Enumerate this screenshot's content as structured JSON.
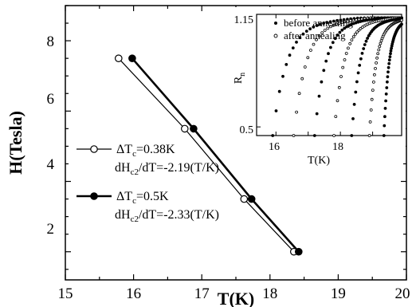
{
  "chart_data": [
    {
      "type": "line",
      "xlabel": "T(K)",
      "ylabel": "H(Tesla)",
      "xlim": [
        15,
        20
      ],
      "ylim": [
        1.2,
        9.0
      ],
      "xticks": [
        "15",
        "16",
        "17",
        "18",
        "19",
        "20"
      ],
      "yticks": [
        "2",
        "4",
        "6",
        "8"
      ],
      "series": [
        {
          "marker": "open-circle",
          "line_weight": "thin",
          "legend": {
            "line1": {
              "a": "ΔT",
              "sub": "c",
              "b": "=0.38K"
            },
            "line2": {
              "a": "dH",
              "sub": "c2",
              "b": "/dT=-2.19(T/K)"
            }
          },
          "x": [
            15.78,
            16.75,
            17.62,
            18.35
          ],
          "y": [
            7.5,
            5.5,
            3.5,
            2.0
          ]
        },
        {
          "marker": "filled-circle",
          "line_weight": "thick",
          "legend": {
            "line1": {
              "a": "ΔT",
              "sub": "c",
              "b": "=0.5K"
            },
            "line2": {
              "a": "dH",
              "sub": "c2",
              "b": "/dT=-2.33(T/K)"
            }
          },
          "x": [
            15.98,
            16.88,
            17.73,
            18.42
          ],
          "y": [
            7.5,
            5.5,
            3.5,
            2.0
          ]
        }
      ]
    },
    {
      "type": "scatter",
      "xlabel": "T(K)",
      "ylabel": {
        "a": "R",
        "sub": "n"
      },
      "xlim": [
        15.4,
        19.9
      ],
      "ylim": [
        0.45,
        1.15
      ],
      "xticks": [
        "16",
        "18"
      ],
      "yticks": [
        "0.5",
        "1.15"
      ],
      "legend": [
        {
          "marker": "filled-dot",
          "label": "before annealing"
        },
        {
          "marker": "open-dot",
          "label": "after annealing"
        }
      ],
      "curves": [
        {
          "marker": "filled-dot",
          "onset": 15.9,
          "width": 1.35
        },
        {
          "marker": "open-dot",
          "onset": 16.55,
          "width": 1.2
        },
        {
          "marker": "filled-dot",
          "onset": 17.2,
          "width": 1.05
        },
        {
          "marker": "open-dot",
          "onset": 17.8,
          "width": 0.95
        },
        {
          "marker": "filled-dot",
          "onset": 18.35,
          "width": 0.8
        },
        {
          "marker": "open-dot",
          "onset": 18.9,
          "width": 0.65
        },
        {
          "marker": "filled-dot",
          "onset": 19.35,
          "width": 0.5
        }
      ]
    }
  ]
}
